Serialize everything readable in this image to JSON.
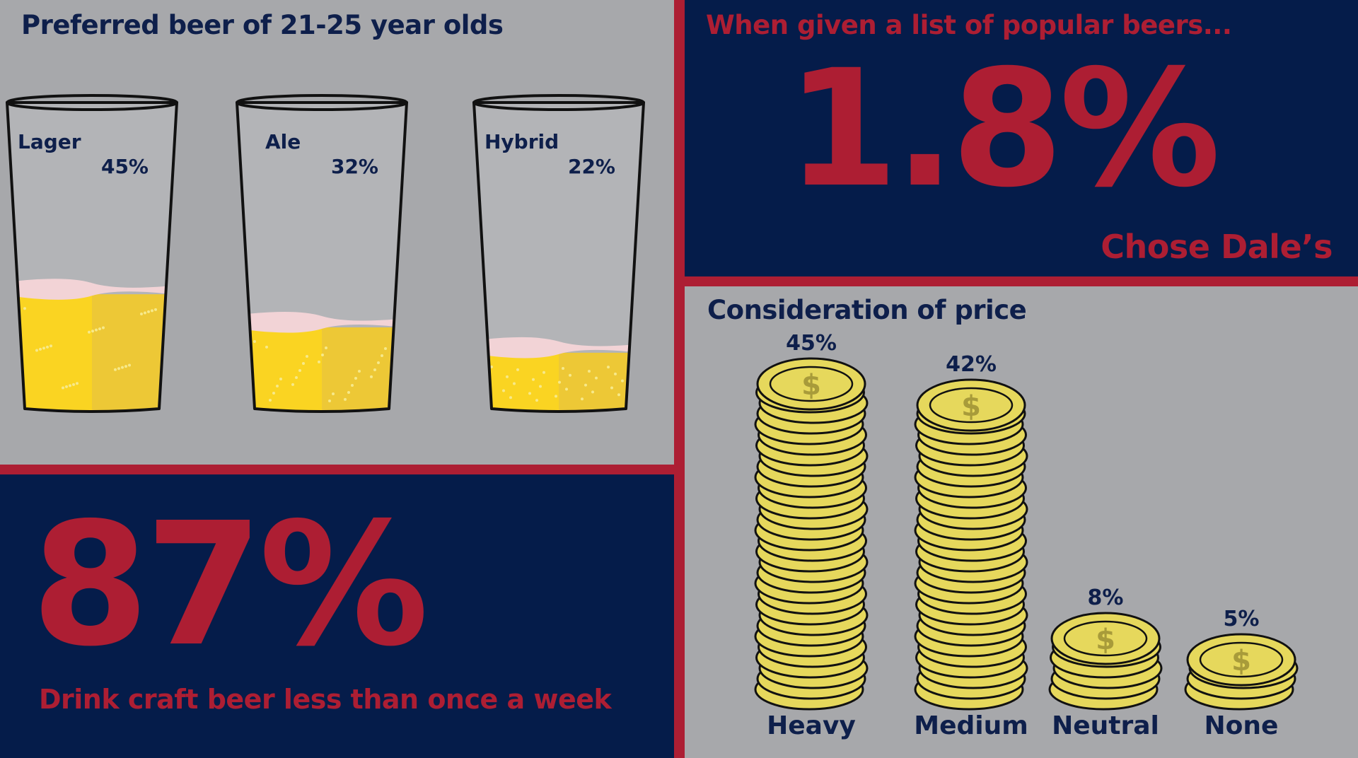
{
  "colors": {
    "navy": "#051c4a",
    "red": "#ad1e33",
    "gray": "#a7a8ab",
    "beer": "#fad422",
    "coin": "#e6d85c"
  },
  "glasses_panel": {
    "title": "Preferred beer of 21-25 year olds"
  },
  "dales_panel": {
    "intro": "When given a list of popular beers...",
    "big_value": "1.8%",
    "caption": "Chose Dale’s"
  },
  "craft_panel": {
    "big_value": "87%",
    "caption": "Drink craft beer less than once a week"
  },
  "price_panel": {
    "title": "Consideration of price"
  },
  "chart_data": [
    {
      "type": "bar",
      "title": "Preferred beer of 21-25 year olds",
      "categories": [
        "Lager",
        "Ale",
        "Hybrid"
      ],
      "values": [
        45,
        32,
        22
      ],
      "value_labels": [
        "45%",
        "32%",
        "22%"
      ],
      "unit": "%",
      "ylim": [
        0,
        100
      ],
      "icon": "beer-glass-icon"
    },
    {
      "type": "bar",
      "title": "Consideration of price",
      "categories": [
        "Heavy",
        "Medium",
        "Neutral",
        "None"
      ],
      "values": [
        45,
        42,
        8,
        5
      ],
      "value_labels": [
        "45%",
        "42%",
        "8%",
        "5%"
      ],
      "unit": "%",
      "icon": "coin-stack-icon"
    }
  ]
}
